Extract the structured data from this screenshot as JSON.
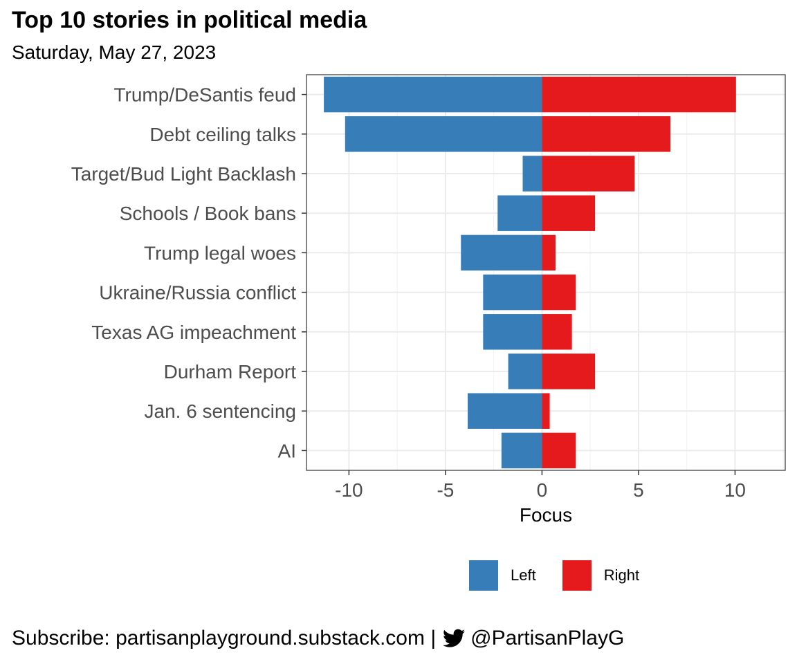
{
  "header": {
    "title": "Top 10 stories in political media",
    "subtitle": "Saturday, May 27, 2023"
  },
  "chart_data": {
    "type": "bar",
    "orientation": "horizontal",
    "categories": [
      "Trump/DeSantis feud",
      "Debt ceiling talks",
      "Target/Bud Light Backlash",
      "Schools / Book bans",
      "Trump legal woes",
      "Ukraine/Russia conflict",
      "Texas AG impeachment",
      "Durham Report",
      "Jan. 6 sentencing",
      "AI"
    ],
    "series": [
      {
        "name": "Left",
        "color": "#377eb8",
        "values": [
          -11.3,
          -10.2,
          -1.0,
          -2.3,
          -4.2,
          -3.05,
          -3.05,
          -1.75,
          -3.85,
          -2.1
        ]
      },
      {
        "name": "Right",
        "color": "#e41a1c",
        "values": [
          10.05,
          6.65,
          4.8,
          2.75,
          0.7,
          1.75,
          1.55,
          2.75,
          0.4,
          1.75
        ]
      }
    ],
    "xlabel": "Focus",
    "xlim": [
      -12.2,
      12.6
    ],
    "xticks": [
      -10,
      -5,
      0,
      5,
      10
    ],
    "grid": true,
    "legend_position": "bottom"
  },
  "legend": {
    "items": [
      {
        "label": "Left",
        "color": "#377eb8"
      },
      {
        "label": "Right",
        "color": "#e41a1c"
      }
    ]
  },
  "footer": {
    "subscribe_text": "Subscribe: partisanplayground.substack.com |",
    "twitter_icon": "twitter-bird-icon",
    "handle": "@PartisanPlayG"
  }
}
